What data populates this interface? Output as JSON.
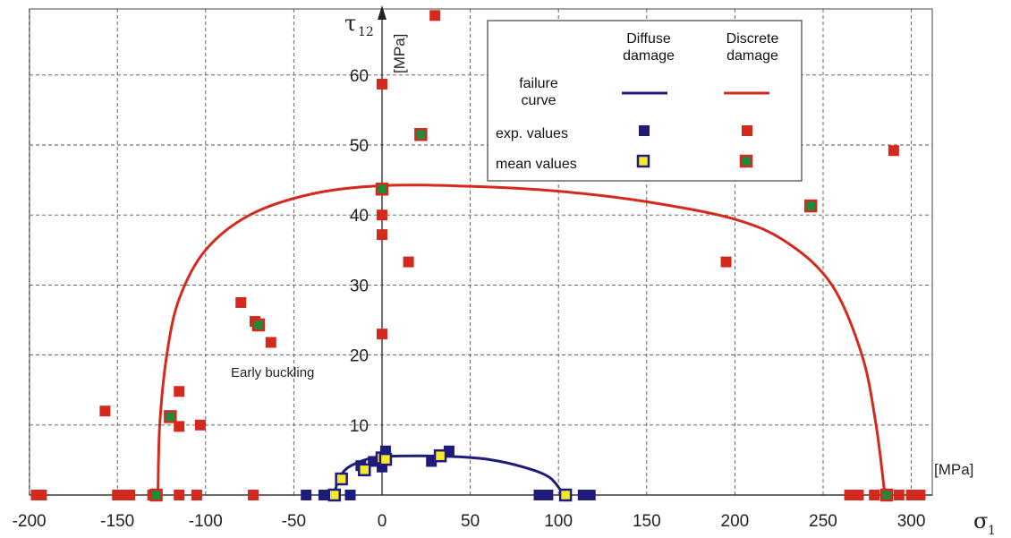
{
  "chart_data": {
    "type": "scatter",
    "x_axis": {
      "label": "σ",
      "label_sub": "1",
      "unit": "[MPa]",
      "range": [
        -200,
        310
      ],
      "ticks": [
        "-200",
        "-150",
        "-100",
        "-50",
        "0",
        "50",
        "100",
        "150",
        "200",
        "250",
        "300"
      ],
      "tick_values": [
        -200,
        -150,
        -100,
        -50,
        0,
        50,
        100,
        150,
        200,
        250,
        300
      ]
    },
    "y_axis": {
      "label": "τ",
      "label_sub": "12",
      "unit": "[MPa]",
      "range": [
        0,
        70
      ],
      "ticks": [
        "10",
        "20",
        "30",
        "40",
        "50",
        "60"
      ],
      "tick_values": [
        10,
        20,
        30,
        40,
        50,
        60
      ]
    },
    "grid": true,
    "legend": {
      "position": "top-right",
      "col_diffuse": "Diffuse damage",
      "col_discrete": "Discrete damage",
      "row_curve": "failure curve",
      "row_exp": "exp. values",
      "row_mean": "mean values"
    },
    "annotation": "Early buckling",
    "colors": {
      "diffuse": "#1f1b7a",
      "discrete": "#d42a1e",
      "mean_diffuse": "#f5ea2a",
      "mean_discrete": "#1f8a3a"
    },
    "series": [
      {
        "name": "Discrete damage exp. values",
        "points": [
          [
            -196,
            0
          ],
          [
            -193,
            0
          ],
          [
            -150,
            0
          ],
          [
            -145,
            0
          ],
          [
            -143,
            0
          ],
          [
            -130,
            0
          ],
          [
            -115,
            0
          ],
          [
            -105,
            0
          ],
          [
            -73,
            0
          ],
          [
            265,
            0
          ],
          [
            270,
            0
          ],
          [
            279,
            0
          ],
          [
            293,
            0
          ],
          [
            300,
            0
          ],
          [
            305,
            0
          ],
          [
            -157,
            12
          ],
          [
            -115,
            14.8
          ],
          [
            -115,
            9.8
          ],
          [
            -103,
            10
          ],
          [
            -80,
            27.5
          ],
          [
            -72,
            24.8
          ],
          [
            -63,
            21.8
          ],
          [
            0,
            58.7
          ],
          [
            0,
            40
          ],
          [
            0,
            37.2
          ],
          [
            0,
            23
          ],
          [
            15,
            33.3
          ],
          [
            30,
            68.5
          ],
          [
            195,
            33.3
          ],
          [
            290,
            49.2
          ]
        ]
      },
      {
        "name": "Discrete damage mean values",
        "points": [
          [
            -128,
            0
          ],
          [
            -120,
            11.2
          ],
          [
            -70,
            24.3
          ],
          [
            0,
            43.7
          ],
          [
            22,
            51.5
          ],
          [
            243,
            41.3
          ],
          [
            286,
            0
          ]
        ]
      },
      {
        "name": "Diffuse damage exp. values",
        "points": [
          [
            -43,
            0
          ],
          [
            -33,
            0
          ],
          [
            -18,
            0
          ],
          [
            -12,
            4.2
          ],
          [
            -5,
            4.8
          ],
          [
            0,
            4
          ],
          [
            2,
            5.8
          ],
          [
            2,
            6.3
          ],
          [
            2,
            5.2
          ],
          [
            28,
            4.8
          ],
          [
            38,
            6.3
          ],
          [
            89,
            0
          ],
          [
            94,
            0
          ],
          [
            114,
            0
          ],
          [
            118,
            0
          ]
        ]
      },
      {
        "name": "Diffuse damage mean values",
        "points": [
          [
            -27,
            0
          ],
          [
            -23,
            2.3
          ],
          [
            -10,
            3.6
          ],
          [
            0,
            5.3
          ],
          [
            2,
            5.1
          ],
          [
            33,
            5.6
          ],
          [
            104,
            0
          ]
        ]
      }
    ],
    "curves": [
      {
        "name": "Discrete damage failure curve",
        "points": [
          [
            -127,
            0
          ],
          [
            -126,
            10
          ],
          [
            -122,
            20
          ],
          [
            -115,
            28
          ],
          [
            -100,
            35
          ],
          [
            -75,
            40
          ],
          [
            -40,
            43
          ],
          [
            0,
            44.2
          ],
          [
            50,
            44.1
          ],
          [
            100,
            43.4
          ],
          [
            150,
            41.9
          ],
          [
            200,
            39.4
          ],
          [
            230,
            36
          ],
          [
            255,
            30
          ],
          [
            272,
            20
          ],
          [
            280,
            10
          ],
          [
            285,
            0
          ]
        ]
      },
      {
        "name": "Diffuse damage failure curve",
        "points": [
          [
            -27,
            0
          ],
          [
            -25,
            2
          ],
          [
            -20,
            3.8
          ],
          [
            -10,
            5
          ],
          [
            0,
            5.5
          ],
          [
            20,
            5.6
          ],
          [
            40,
            5.5
          ],
          [
            60,
            5.1
          ],
          [
            80,
            4
          ],
          [
            95,
            2.5
          ],
          [
            103,
            0
          ]
        ]
      }
    ]
  }
}
